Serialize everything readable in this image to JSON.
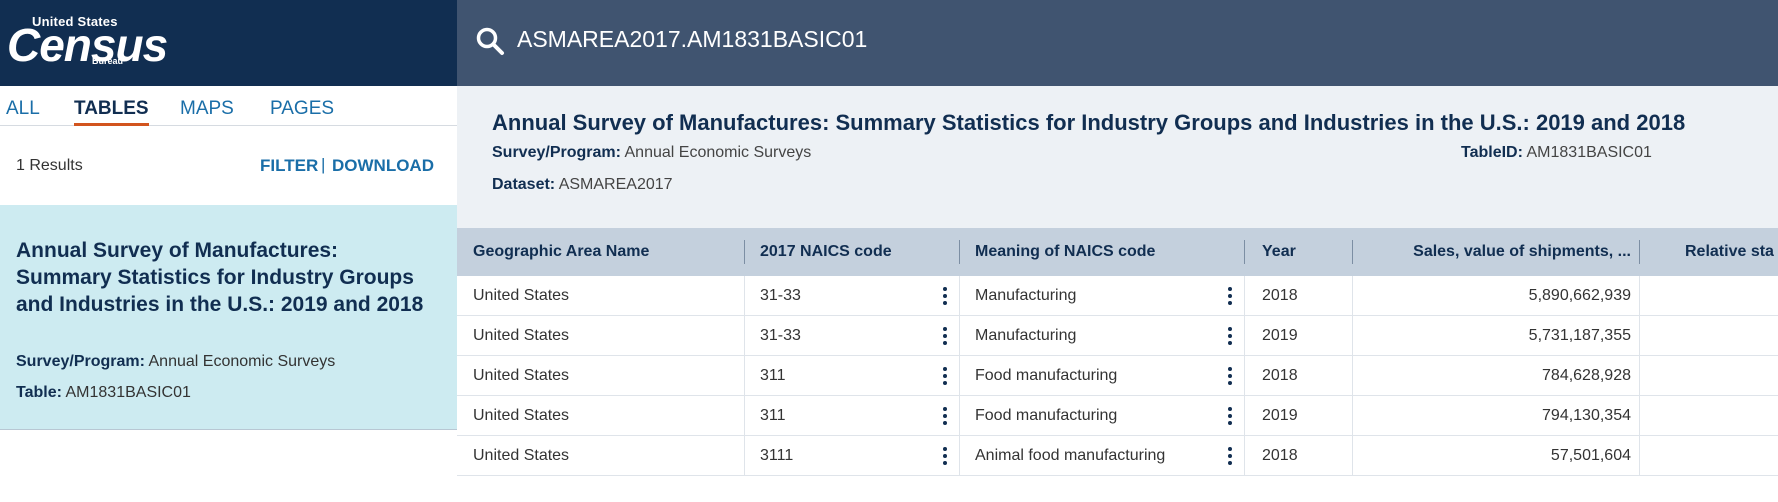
{
  "logo": {
    "line1": "United States",
    "wordmark": "Census",
    "line3": "Bureau",
    "bg_color": "#112e51"
  },
  "search": {
    "icon": "search-icon",
    "query": "ASMAREA2017.AM1831BASIC01"
  },
  "tabs": [
    {
      "label": "ALL",
      "active": false
    },
    {
      "label": "TABLES",
      "active": true
    },
    {
      "label": "MAPS",
      "active": false
    },
    {
      "label": "PAGES",
      "active": false
    }
  ],
  "results": {
    "count_text": "1 Results",
    "filter_label": "FILTER",
    "separator": "|",
    "download_label": "DOWNLOAD"
  },
  "result_card": {
    "title": "Annual Survey of Manufactures: Summary Statistics for Industry Groups and Industries in the U.S.: 2019 and 2018",
    "program_label": "Survey/Program:",
    "program_value": "Annual Economic Surveys",
    "table_label": "Table:",
    "table_value": "AM1831BASIC01"
  },
  "table_header": {
    "title": "Annual Survey of Manufactures: Summary Statistics for Industry Groups and Industries in the U.S.: 2019 and 2018",
    "program_label": "Survey/Program:",
    "program_value": "Annual Economic Surveys",
    "dataset_label": "Dataset:",
    "dataset_value": "ASMAREA2017",
    "tableid_label": "TableID:",
    "tableid_value": "AM1831BASIC01"
  },
  "grid": {
    "columns": [
      "Geographic Area Name",
      "2017 NAICS code",
      "Meaning of NAICS code",
      "Year",
      "Sales, value of shipments, ...",
      "Relative sta"
    ],
    "rows": [
      [
        "United States",
        "31-33",
        "Manufacturing",
        "2018",
        "5,890,662,939"
      ],
      [
        "United States",
        "31-33",
        "Manufacturing",
        "2019",
        "5,731,187,355"
      ],
      [
        "United States",
        "311",
        "Food manufacturing",
        "2018",
        "784,628,928"
      ],
      [
        "United States",
        "311",
        "Food manufacturing",
        "2019",
        "794,130,354"
      ],
      [
        "United States",
        "3111",
        "Animal food manufacturing",
        "2018",
        "57,501,604"
      ]
    ]
  },
  "colors": {
    "nav_dark": "#112e51",
    "searchbar": "#405470",
    "link_blue": "#1a6ea8",
    "active_tab_underline": "#d2541e",
    "selected_card": "#cdebf1",
    "grid_header": "#c4d0dd"
  }
}
